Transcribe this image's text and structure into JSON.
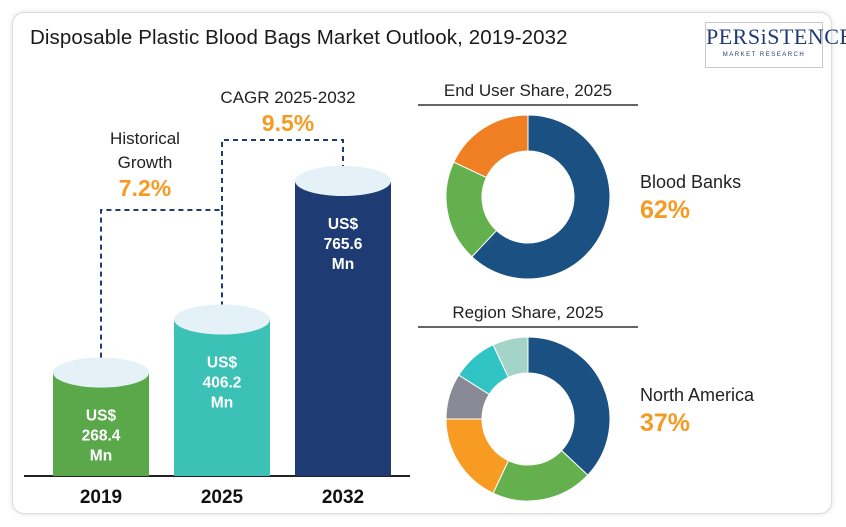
{
  "title": "Disposable Plastic Blood Bags Market Outlook, 2019-2032",
  "logo": {
    "name": "PERSiSTENCE",
    "tagline": "MARKET RESEARCH"
  },
  "colors": {
    "bar_2019": "#5aa84a",
    "bar_2025": "#3cc1b6",
    "bar_2032": "#1f3b73",
    "highlight": "#f59b23",
    "cap": "#e4f1f7"
  },
  "chart_data": [
    {
      "type": "bar",
      "categories": [
        "2019",
        "2025",
        "2032"
      ],
      "values": [
        268.4,
        406.2,
        765.6
      ],
      "value_labels": [
        [
          "US$",
          "268.4",
          "Mn"
        ],
        [
          "US$",
          "406.2",
          "Mn"
        ],
        [
          "US$",
          "765.6",
          "Mn"
        ]
      ],
      "annotations": [
        {
          "label_lines": [
            "Historical",
            "Growth"
          ],
          "value": "7.2%"
        },
        {
          "label_lines": [
            "CAGR 2025-2032"
          ],
          "value": "9.5%"
        }
      ]
    },
    {
      "type": "pie",
      "title": "End User Share, 2025",
      "slices": [
        {
          "value": 62,
          "color": "#1a5182"
        },
        {
          "value": 20,
          "color": "#64b04e"
        },
        {
          "value": 18,
          "color": "#f07f23"
        }
      ],
      "callout": {
        "label": "Blood Banks",
        "value": "62%"
      }
    },
    {
      "type": "pie",
      "title": "Region Share, 2025",
      "slices": [
        {
          "value": 37,
          "color": "#1a5182"
        },
        {
          "value": 20,
          "color": "#64b04e"
        },
        {
          "value": 18,
          "color": "#f79b23"
        },
        {
          "value": 9,
          "color": "#8a8a97"
        },
        {
          "value": 9,
          "color": "#31c4c4"
        },
        {
          "value": 7,
          "color": "#a4d4c8"
        }
      ],
      "callout": {
        "label": "North America",
        "value": "37%"
      }
    }
  ]
}
